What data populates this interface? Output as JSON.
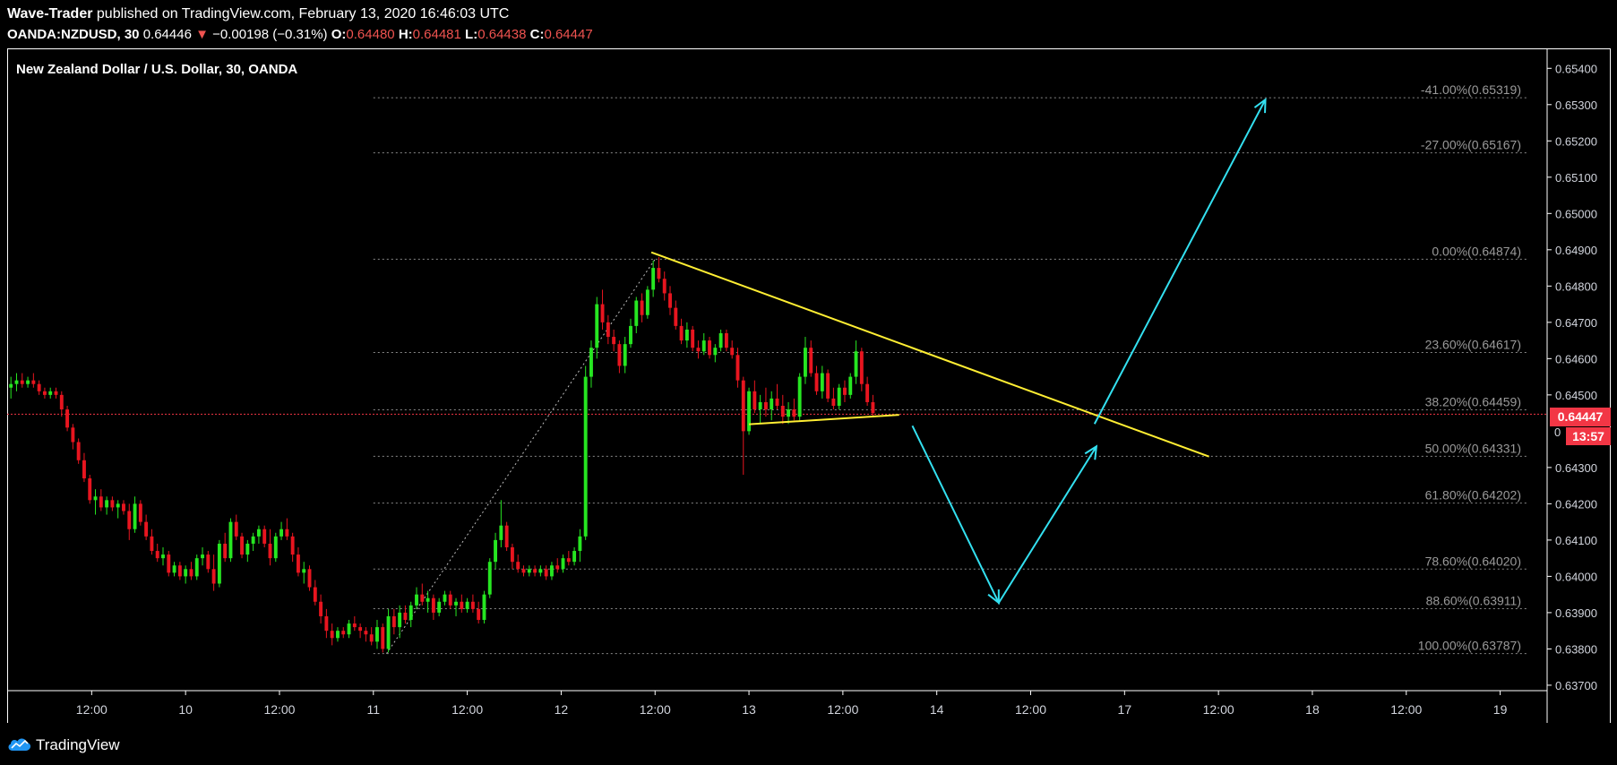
{
  "header": {
    "author": "Wave-Trader",
    "published_text": "published on TradingView.com, February 13, 2020 16:46:03 UTC",
    "symbol": "OANDA:NZDUSD, 30",
    "last": "0.64446",
    "change_arrow": "▼",
    "change": "−0.00198 (−0.31%)",
    "o_label": "O:",
    "o_value": "0.64480",
    "h_label": "H:",
    "h_value": "0.64481",
    "l_label": "L:",
    "l_value": "0.64438",
    "c_label": "C:",
    "c_value": "0.64447"
  },
  "footer": {
    "brand": "TradingView",
    "logo_icon": "tradingview-cloud-icon"
  },
  "colors": {
    "background": "#000000",
    "up": "#26e621",
    "down": "#e8151f",
    "trendline": "#ffee33",
    "projection": "#33e0f0",
    "fib": "#8a8a8a",
    "price_line": "#f23645"
  },
  "chart_data": {
    "type": "candlestick",
    "title": "New Zealand Dollar / U.S. Dollar, 30, OANDA",
    "y_ticks": [
      "0.65400",
      "0.65300",
      "0.65200",
      "0.65100",
      "0.65000",
      "0.64900",
      "0.64800",
      "0.64700",
      "0.64600",
      "0.64500",
      "0.64300",
      "0.64200",
      "0.64100",
      "0.64000",
      "0.63900",
      "0.63800",
      "0.63700"
    ],
    "x_ticks": [
      "12:00",
      "10",
      "12:00",
      "11",
      "12:00",
      "12",
      "12:00",
      "13",
      "12:00",
      "14",
      "12:00",
      "17",
      "12:00",
      "18",
      "12:00",
      "19"
    ],
    "x_tick_slots": [
      3.5,
      8.5,
      13.5,
      18.5,
      23.5,
      28.5,
      33.5,
      38.5,
      43.5,
      48.5,
      53.5,
      58.5,
      63.5,
      68.5,
      73.5,
      78.5
    ],
    "x_slot_range": [
      -1,
      81
    ],
    "y_range": [
      0.63685,
      0.65455
    ],
    "grid": false,
    "current_price": {
      "value": "0.64447",
      "value_num": 0.64447,
      "countdown": "13:57",
      "partial_label": "0"
    },
    "fib_levels": [
      {
        "label": "-41.00%(0.65319)",
        "price": 0.65319
      },
      {
        "label": "-27.00%(0.65167)",
        "price": 0.65167
      },
      {
        "label": "0.00%(0.64874)",
        "price": 0.64874
      },
      {
        "label": "23.60%(0.64617)",
        "price": 0.64617
      },
      {
        "label": "38.20%(0.64459)",
        "price": 0.64459
      },
      {
        "label": "50.00%(0.64331)",
        "price": 0.64331
      },
      {
        "label": "61.80%(0.64202)",
        "price": 0.64202
      },
      {
        "label": "78.60%(0.64020)",
        "price": 0.6402
      },
      {
        "label": "88.60%(0.63911)",
        "price": 0.63911
      },
      {
        "label": "100.00%(0.63787)",
        "price": 0.63787
      }
    ],
    "fib_span": [
      18.5,
      81
    ],
    "fib_anchor": {
      "from": [
        19.2,
        0.63787
      ],
      "to": [
        33.5,
        0.64874
      ]
    },
    "trendlines": [
      {
        "from": [
          33.3,
          0.64893
        ],
        "to": [
          63.0,
          0.6433
        ]
      },
      {
        "from": [
          38.5,
          0.64419
        ],
        "to": [
          46.5,
          0.64445
        ]
      }
    ],
    "projection": [
      [
        47.2,
        0.64415
      ],
      [
        51.8,
        0.63927
      ],
      [
        57.0,
        0.64358
      ],
      [
        56.9,
        0.6442
      ],
      [
        66.0,
        0.65314
      ]
    ],
    "candles": [
      [
        -0.8,
        0.6452,
        0.6455,
        0.6449,
        0.6453
      ],
      [
        -0.5,
        0.6453,
        0.6456,
        0.6451,
        0.6454
      ],
      [
        -0.2,
        0.6454,
        0.6456,
        0.6452,
        0.6453
      ],
      [
        0.1,
        0.6453,
        0.6455,
        0.6452,
        0.6454
      ],
      [
        0.4,
        0.6454,
        0.6456,
        0.6452,
        0.6453
      ],
      [
        0.7,
        0.6453,
        0.6454,
        0.645,
        0.6451
      ],
      [
        1.0,
        0.6451,
        0.6452,
        0.6449,
        0.645
      ],
      [
        1.3,
        0.645,
        0.6452,
        0.6449,
        0.6451
      ],
      [
        1.6,
        0.6451,
        0.6452,
        0.6449,
        0.645
      ],
      [
        1.9,
        0.645,
        0.6451,
        0.6444,
        0.6446
      ],
      [
        2.2,
        0.6446,
        0.6447,
        0.644,
        0.6441
      ],
      [
        2.5,
        0.6441,
        0.6442,
        0.6435,
        0.6437
      ],
      [
        2.8,
        0.6437,
        0.6438,
        0.6431,
        0.6432
      ],
      [
        3.1,
        0.6432,
        0.6434,
        0.6426,
        0.6427
      ],
      [
        3.4,
        0.6427,
        0.6428,
        0.642,
        0.6421
      ],
      [
        3.7,
        0.6421,
        0.6424,
        0.6417,
        0.6422
      ],
      [
        4.0,
        0.6422,
        0.6424,
        0.6418,
        0.6419
      ],
      [
        4.3,
        0.6419,
        0.6422,
        0.6417,
        0.6421
      ],
      [
        4.6,
        0.6421,
        0.6422,
        0.6418,
        0.6419
      ],
      [
        4.9,
        0.6419,
        0.6421,
        0.6416,
        0.642
      ],
      [
        5.2,
        0.642,
        0.6421,
        0.6417,
        0.6418
      ],
      [
        5.5,
        0.6418,
        0.642,
        0.641,
        0.6413
      ],
      [
        5.8,
        0.6413,
        0.6422,
        0.6412,
        0.642
      ],
      [
        6.1,
        0.642,
        0.6421,
        0.6414,
        0.6415
      ],
      [
        6.4,
        0.6415,
        0.6417,
        0.641,
        0.6411
      ],
      [
        6.7,
        0.6411,
        0.6413,
        0.6406,
        0.6407
      ],
      [
        7.0,
        0.6407,
        0.6409,
        0.6404,
        0.6405
      ],
      [
        7.3,
        0.6405,
        0.6408,
        0.6403,
        0.6406
      ],
      [
        7.6,
        0.6406,
        0.6407,
        0.64,
        0.6401
      ],
      [
        7.9,
        0.6401,
        0.6404,
        0.64,
        0.6403
      ],
      [
        8.2,
        0.6403,
        0.6404,
        0.6399,
        0.64
      ],
      [
        8.5,
        0.64,
        0.6403,
        0.6398,
        0.6402
      ],
      [
        8.8,
        0.6402,
        0.6404,
        0.6399,
        0.64
      ],
      [
        9.1,
        0.64,
        0.6406,
        0.6399,
        0.6405
      ],
      [
        9.4,
        0.6405,
        0.6408,
        0.6403,
        0.6406
      ],
      [
        9.7,
        0.6406,
        0.6407,
        0.6401,
        0.6402
      ],
      [
        10.0,
        0.6402,
        0.6406,
        0.6396,
        0.6398
      ],
      [
        10.3,
        0.6398,
        0.641,
        0.6397,
        0.6409
      ],
      [
        10.6,
        0.6409,
        0.6412,
        0.6404,
        0.6405
      ],
      [
        10.9,
        0.6405,
        0.6416,
        0.6404,
        0.6415
      ],
      [
        11.2,
        0.6415,
        0.6417,
        0.641,
        0.6411
      ],
      [
        11.5,
        0.6411,
        0.6412,
        0.6405,
        0.6406
      ],
      [
        11.8,
        0.6406,
        0.641,
        0.6404,
        0.6409
      ],
      [
        12.1,
        0.6409,
        0.6412,
        0.6407,
        0.6411
      ],
      [
        12.4,
        0.6411,
        0.6414,
        0.6409,
        0.6413
      ],
      [
        12.7,
        0.6413,
        0.6414,
        0.6408,
        0.6409
      ],
      [
        13.0,
        0.6409,
        0.6413,
        0.6403,
        0.6405
      ],
      [
        13.3,
        0.6405,
        0.6412,
        0.6404,
        0.6411
      ],
      [
        13.6,
        0.6411,
        0.6415,
        0.641,
        0.6413
      ],
      [
        13.9,
        0.6413,
        0.6416,
        0.641,
        0.6411
      ],
      [
        14.2,
        0.6411,
        0.6412,
        0.6404,
        0.6406
      ],
      [
        14.5,
        0.6406,
        0.6408,
        0.64,
        0.6401
      ],
      [
        14.8,
        0.6401,
        0.6404,
        0.6398,
        0.6402
      ],
      [
        15.1,
        0.6402,
        0.6403,
        0.6396,
        0.6397
      ],
      [
        15.4,
        0.6397,
        0.6399,
        0.6392,
        0.6393
      ],
      [
        15.7,
        0.6393,
        0.6395,
        0.6387,
        0.6389
      ],
      [
        16.0,
        0.6389,
        0.6391,
        0.6383,
        0.6385
      ],
      [
        16.3,
        0.6385,
        0.6387,
        0.6381,
        0.6383
      ],
      [
        16.6,
        0.6383,
        0.6386,
        0.6382,
        0.6385
      ],
      [
        16.9,
        0.6385,
        0.6386,
        0.6383,
        0.6384
      ],
      [
        17.2,
        0.6384,
        0.6388,
        0.6383,
        0.6387
      ],
      [
        17.5,
        0.6387,
        0.6389,
        0.6385,
        0.6386
      ],
      [
        17.8,
        0.6386,
        0.6387,
        0.6383,
        0.6385
      ],
      [
        18.1,
        0.6385,
        0.6386,
        0.6382,
        0.6384
      ],
      [
        18.4,
        0.6384,
        0.6386,
        0.6381,
        0.6382
      ],
      [
        18.7,
        0.6382,
        0.6388,
        0.638,
        0.6386
      ],
      [
        19.0,
        0.6386,
        0.6387,
        0.6379,
        0.638
      ],
      [
        19.3,
        0.638,
        0.6391,
        0.6379,
        0.6389
      ],
      [
        19.6,
        0.6389,
        0.6391,
        0.6384,
        0.6386
      ],
      [
        19.9,
        0.6386,
        0.6392,
        0.6383,
        0.639
      ],
      [
        20.2,
        0.639,
        0.6392,
        0.6387,
        0.6388
      ],
      [
        20.5,
        0.6388,
        0.6393,
        0.6386,
        0.6392
      ],
      [
        20.8,
        0.6392,
        0.6397,
        0.6391,
        0.6395
      ],
      [
        21.1,
        0.6395,
        0.6398,
        0.6392,
        0.6393
      ],
      [
        21.4,
        0.6393,
        0.6396,
        0.639,
        0.6394
      ],
      [
        21.7,
        0.6394,
        0.6395,
        0.6388,
        0.639
      ],
      [
        22.0,
        0.639,
        0.6394,
        0.6389,
        0.6393
      ],
      [
        22.3,
        0.6393,
        0.6396,
        0.6392,
        0.6395
      ],
      [
        22.6,
        0.6395,
        0.6396,
        0.6391,
        0.6392
      ],
      [
        22.9,
        0.6392,
        0.6394,
        0.6389,
        0.6393
      ],
      [
        23.2,
        0.6393,
        0.6395,
        0.639,
        0.6391
      ],
      [
        23.5,
        0.6391,
        0.6394,
        0.639,
        0.6393
      ],
      [
        23.8,
        0.6393,
        0.6395,
        0.639,
        0.6391
      ],
      [
        24.1,
        0.6391,
        0.6393,
        0.6387,
        0.6388
      ],
      [
        24.4,
        0.6388,
        0.6396,
        0.6387,
        0.6395
      ],
      [
        24.7,
        0.6395,
        0.6405,
        0.6394,
        0.6404
      ],
      [
        25.0,
        0.6404,
        0.6412,
        0.6402,
        0.641
      ],
      [
        25.3,
        0.641,
        0.6421,
        0.6408,
        0.6414
      ],
      [
        25.6,
        0.6414,
        0.6415,
        0.6407,
        0.6408
      ],
      [
        25.9,
        0.6408,
        0.6409,
        0.6402,
        0.6404
      ],
      [
        26.2,
        0.6404,
        0.6406,
        0.6401,
        0.6402
      ],
      [
        26.5,
        0.6402,
        0.6403,
        0.64,
        0.6401
      ],
      [
        26.8,
        0.6401,
        0.6403,
        0.64,
        0.6402
      ],
      [
        27.1,
        0.6402,
        0.6403,
        0.64,
        0.6401
      ],
      [
        27.4,
        0.6401,
        0.6403,
        0.64,
        0.6402
      ],
      [
        27.7,
        0.6402,
        0.6403,
        0.6399,
        0.64
      ],
      [
        28.0,
        0.64,
        0.6404,
        0.6399,
        0.6403
      ],
      [
        28.3,
        0.6403,
        0.6405,
        0.6401,
        0.6402
      ],
      [
        28.6,
        0.6402,
        0.6406,
        0.6401,
        0.6405
      ],
      [
        28.9,
        0.6405,
        0.6407,
        0.6403,
        0.6404
      ],
      [
        29.2,
        0.6404,
        0.6408,
        0.6403,
        0.6407
      ],
      [
        29.5,
        0.6407,
        0.6413,
        0.6404,
        0.6411
      ],
      [
        29.8,
        0.6411,
        0.6458,
        0.641,
        0.6455
      ],
      [
        30.1,
        0.6455,
        0.6465,
        0.6452,
        0.6463
      ],
      [
        30.4,
        0.6463,
        0.6477,
        0.646,
        0.6475
      ],
      [
        30.7,
        0.6475,
        0.6479,
        0.6468,
        0.647
      ],
      [
        31.0,
        0.647,
        0.6472,
        0.6464,
        0.6466
      ],
      [
        31.3,
        0.6466,
        0.6468,
        0.6462,
        0.6464
      ],
      [
        31.6,
        0.6464,
        0.6465,
        0.6456,
        0.6458
      ],
      [
        31.9,
        0.6458,
        0.6466,
        0.6456,
        0.6464
      ],
      [
        32.2,
        0.6464,
        0.6471,
        0.6463,
        0.6469
      ],
      [
        32.5,
        0.6469,
        0.6477,
        0.6467,
        0.6476
      ],
      [
        32.8,
        0.6476,
        0.6478,
        0.647,
        0.6472
      ],
      [
        33.1,
        0.6472,
        0.648,
        0.6471,
        0.6479
      ],
      [
        33.4,
        0.6479,
        0.6487,
        0.6477,
        0.6485
      ],
      [
        33.7,
        0.6485,
        0.6488,
        0.6481,
        0.6482
      ],
      [
        34.0,
        0.6482,
        0.6484,
        0.6476,
        0.6478
      ],
      [
        34.3,
        0.6478,
        0.648,
        0.6472,
        0.6474
      ],
      [
        34.6,
        0.6474,
        0.6476,
        0.6468,
        0.6469
      ],
      [
        34.9,
        0.6469,
        0.6471,
        0.6464,
        0.6465
      ],
      [
        35.2,
        0.6465,
        0.647,
        0.6463,
        0.6468
      ],
      [
        35.5,
        0.6468,
        0.6469,
        0.6462,
        0.6463
      ],
      [
        35.8,
        0.6463,
        0.6465,
        0.646,
        0.6462
      ],
      [
        36.1,
        0.6462,
        0.6467,
        0.6461,
        0.6465
      ],
      [
        36.4,
        0.6465,
        0.6466,
        0.646,
        0.6461
      ],
      [
        36.7,
        0.6461,
        0.6464,
        0.6459,
        0.6463
      ],
      [
        37.0,
        0.6463,
        0.6468,
        0.6462,
        0.6467
      ],
      [
        37.3,
        0.6467,
        0.6468,
        0.6462,
        0.6463
      ],
      [
        37.6,
        0.6463,
        0.6465,
        0.646,
        0.6461
      ],
      [
        37.9,
        0.6461,
        0.6463,
        0.6452,
        0.6454
      ],
      [
        38.2,
        0.6454,
        0.6455,
        0.6428,
        0.644
      ],
      [
        38.5,
        0.644,
        0.6452,
        0.6439,
        0.6451
      ],
      [
        38.8,
        0.6451,
        0.6454,
        0.6445,
        0.6446
      ],
      [
        39.1,
        0.6446,
        0.645,
        0.6442,
        0.6448
      ],
      [
        39.4,
        0.6448,
        0.6452,
        0.6444,
        0.6446
      ],
      [
        39.7,
        0.6446,
        0.6451,
        0.6443,
        0.6449
      ],
      [
        40.0,
        0.6449,
        0.6453,
        0.6446,
        0.6447
      ],
      [
        40.3,
        0.6447,
        0.645,
        0.6442,
        0.6444
      ],
      [
        40.6,
        0.6444,
        0.6448,
        0.6442,
        0.6446
      ],
      [
        40.9,
        0.6446,
        0.6449,
        0.6443,
        0.6444
      ],
      [
        41.2,
        0.6444,
        0.6456,
        0.6443,
        0.6455
      ],
      [
        41.5,
        0.6455,
        0.6466,
        0.6453,
        0.6463
      ],
      [
        41.8,
        0.6463,
        0.6465,
        0.6455,
        0.6456
      ],
      [
        42.1,
        0.6456,
        0.6458,
        0.645,
        0.6451
      ],
      [
        42.4,
        0.6451,
        0.6458,
        0.6449,
        0.6456
      ],
      [
        42.7,
        0.6456,
        0.6457,
        0.6448,
        0.6449
      ],
      [
        43.0,
        0.6449,
        0.6452,
        0.6446,
        0.6447
      ],
      [
        43.3,
        0.6447,
        0.6453,
        0.6446,
        0.6452
      ],
      [
        43.6,
        0.6452,
        0.6454,
        0.6448,
        0.645
      ],
      [
        43.9,
        0.645,
        0.6456,
        0.6449,
        0.6455
      ],
      [
        44.2,
        0.6455,
        0.6465,
        0.6453,
        0.6462
      ],
      [
        44.5,
        0.6462,
        0.6463,
        0.6451,
        0.6453
      ],
      [
        44.8,
        0.6453,
        0.6455,
        0.6447,
        0.6448
      ],
      [
        45.1,
        0.6448,
        0.645,
        0.6444,
        0.6445
      ]
    ]
  }
}
